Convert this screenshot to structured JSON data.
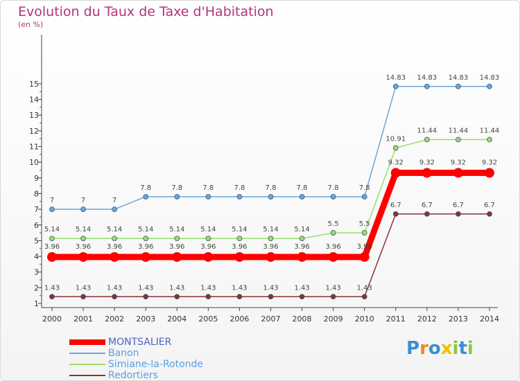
{
  "chart_data": {
    "type": "line",
    "title": "Evolution du Taux de Taxe d'Habitation",
    "ylabel": "(en %)",
    "ylim": [
      1,
      15
    ],
    "yticks": [
      1,
      2,
      3,
      4,
      5,
      6,
      7,
      8,
      9,
      10,
      11,
      12,
      13,
      14,
      15
    ],
    "categories": [
      "2000",
      "2001",
      "2002",
      "2003",
      "2004",
      "2005",
      "2006",
      "2007",
      "2008",
      "2009",
      "2010",
      "2011",
      "2012",
      "2013",
      "2014"
    ],
    "grid": false,
    "legend_position": "bottom-left",
    "series": [
      {
        "name": "MONTSALIER",
        "color": "#ff0000",
        "emphasis": true,
        "values": [
          3.96,
          3.96,
          3.96,
          3.96,
          3.96,
          3.96,
          3.96,
          3.96,
          3.96,
          3.96,
          3.96,
          9.32,
          9.32,
          9.32,
          9.32
        ],
        "labels": [
          "3.96",
          "3.96",
          "3.96",
          "3.96",
          "3.96",
          "3.96",
          "3.96",
          "3.96",
          "3.96",
          "3.96",
          "3.96",
          "9.32",
          "9.32",
          "9.32",
          "9.32"
        ]
      },
      {
        "name": "Banon",
        "color": "#6aa6d8",
        "values": [
          7,
          7,
          7,
          7.8,
          7.8,
          7.8,
          7.8,
          7.8,
          7.8,
          7.8,
          7.8,
          14.83,
          14.83,
          14.83,
          14.83
        ],
        "labels": [
          "7",
          "7",
          "7",
          "7.8",
          "7.8",
          "7.8",
          "7.8",
          "7.8",
          "7.8",
          "7.8",
          "7.8",
          "14.83",
          "14.83",
          "14.83",
          "14.83"
        ]
      },
      {
        "name": "Simiane-la-Rotonde",
        "color": "#99dd66",
        "values": [
          5.14,
          5.14,
          5.14,
          5.14,
          5.14,
          5.14,
          5.14,
          5.14,
          5.14,
          5.5,
          5.5,
          10.91,
          11.44,
          11.44,
          11.44
        ],
        "labels": [
          "5.14",
          "5.14",
          "5.14",
          "5.14",
          "5.14",
          "5.14",
          "5.14",
          "5.14",
          "5.14",
          "5.5",
          "5.5",
          "10.91",
          "11.44",
          "11.44",
          "11.44"
        ]
      },
      {
        "name": "Redortiers",
        "color": "#883333",
        "values": [
          1.43,
          1.43,
          1.43,
          1.43,
          1.43,
          1.43,
          1.43,
          1.43,
          1.43,
          1.43,
          1.43,
          6.7,
          6.7,
          6.7,
          6.7
        ],
        "labels": [
          "1.43",
          "1.43",
          "1.43",
          "1.43",
          "1.43",
          "1.43",
          "1.43",
          "1.43",
          "1.43",
          "1.43",
          "1.43",
          "6.7",
          "6.7",
          "6.7",
          "6.7"
        ]
      }
    ]
  },
  "logo": {
    "text": "Proxiti",
    "letters": [
      "P",
      "r",
      "o",
      "x",
      "i",
      "t",
      "i"
    ],
    "colors": [
      "#3a8fd0",
      "#f08a1a",
      "#3a8fd0",
      "#f0c000",
      "#8dc63f",
      "#3a8fd0",
      "#8dc63f"
    ]
  }
}
